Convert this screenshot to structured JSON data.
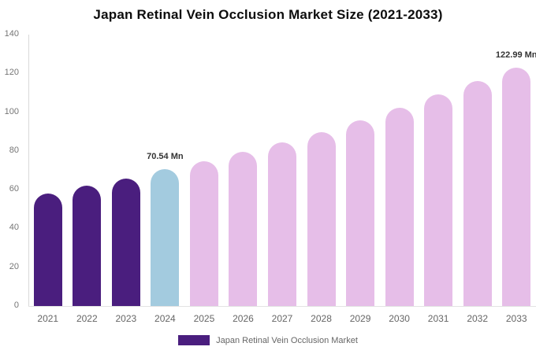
{
  "chart_data": {
    "type": "bar",
    "title": "Japan Retinal Vein Occlusion Market Size (2021-2033)",
    "categories": [
      "2021",
      "2022",
      "2023",
      "2024",
      "2025",
      "2026",
      "2027",
      "2028",
      "2029",
      "2030",
      "2031",
      "2032",
      "2033"
    ],
    "values": [
      58.2,
      62.1,
      65.9,
      70.54,
      74.7,
      79.4,
      84.4,
      89.7,
      95.8,
      102.3,
      109.2,
      116.1,
      122.99
    ],
    "bar_colors": [
      "#4A1E7E",
      "#4A1E7E",
      "#4A1E7E",
      "#A3CBDF",
      "#E6BEE8",
      "#E6BEE8",
      "#E6BEE8",
      "#E6BEE8",
      "#E6BEE8",
      "#E6BEE8",
      "#E6BEE8",
      "#E6BEE8",
      "#E6BEE8"
    ],
    "xlabel": "",
    "ylabel": "",
    "ylim": [
      0,
      140
    ],
    "yticks": [
      0,
      20,
      40,
      60,
      80,
      100,
      120,
      140
    ],
    "grid": "off",
    "annotations": [
      {
        "category": "2024",
        "index": 3,
        "text": "70.54 Mn"
      },
      {
        "category": "2033",
        "index": 12,
        "text": "122.99 Mn"
      }
    ],
    "legend_position": "bottom",
    "legend": [
      {
        "label": "Japan Retinal Vein Occlusion Market",
        "color": "#4A1E7E"
      }
    ]
  },
  "colors": {
    "background": "#ffffff",
    "title_text": "#0d0d0d",
    "axis_line": "#d9d9d9",
    "tick_text": "#757575",
    "xlabel_text": "#666666",
    "annotation_text": "#333333",
    "series_historic": "#4A1E7E",
    "series_base_year": "#A3CBDF",
    "series_forecast": "#E6BEE8"
  }
}
